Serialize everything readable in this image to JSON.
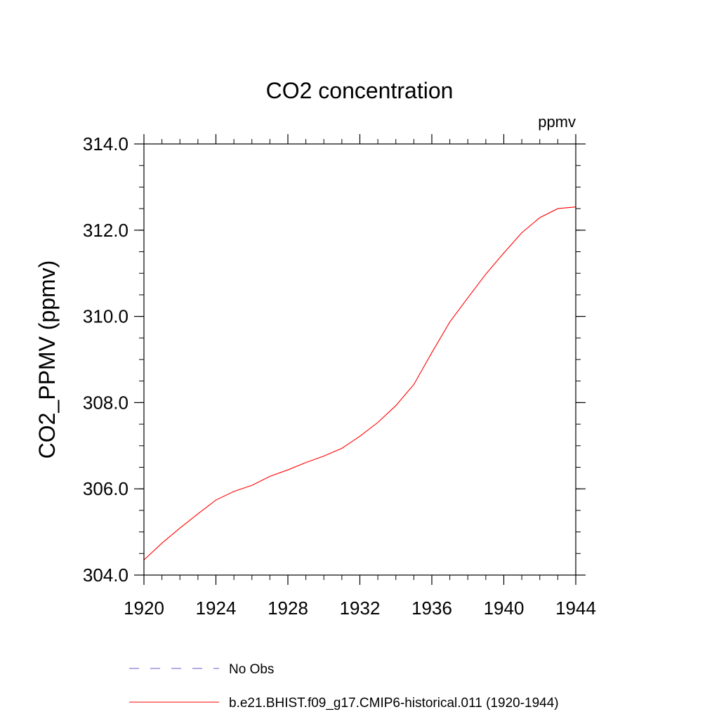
{
  "chart_data": {
    "type": "line",
    "title": "CO2 concentration",
    "units_label": "ppmv",
    "ylabel": "CO2_PPMV  (ppmv)",
    "xlabel": "",
    "xlim": [
      1920,
      1944
    ],
    "ylim": [
      304.0,
      314.0
    ],
    "x_ticks": [
      "1920",
      "1924",
      "1928",
      "1932",
      "1936",
      "1940",
      "1944"
    ],
    "y_ticks": [
      "304.0",
      "306.0",
      "308.0",
      "310.0",
      "312.0",
      "314.0"
    ],
    "x_minor_step": 1,
    "y_minor_step": 0.5,
    "grid": false,
    "legend_position": "bottom",
    "series": [
      {
        "name": "No Obs",
        "color": "#6a5acd",
        "dash": "dashed",
        "x": [],
        "y": []
      },
      {
        "name": "b.e21.BHIST.f09_g17.CMIP6-historical.011 (1920-1944)",
        "color": "#ff0000",
        "dash": "solid",
        "x": [
          1920,
          1921,
          1922,
          1923,
          1924,
          1925,
          1926,
          1927,
          1928,
          1929,
          1930,
          1931,
          1932,
          1933,
          1934,
          1935,
          1936,
          1937,
          1938,
          1939,
          1940,
          1941,
          1942,
          1943,
          1944
        ],
        "y": [
          304.35,
          304.74,
          305.09,
          305.42,
          305.74,
          305.94,
          306.08,
          306.29,
          306.44,
          306.61,
          306.76,
          306.94,
          307.22,
          307.54,
          307.93,
          308.42,
          309.16,
          309.87,
          310.43,
          310.98,
          311.47,
          311.94,
          312.29,
          312.5,
          312.54
        ]
      }
    ]
  }
}
